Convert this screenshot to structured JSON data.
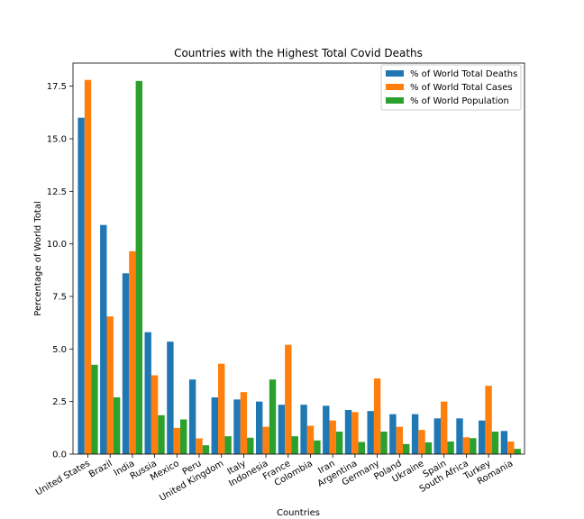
{
  "chart_data": {
    "type": "bar",
    "title": "Countries with the Highest Total Covid Deaths",
    "xlabel": "Countries",
    "ylabel": "Percentage of World Total",
    "ylim": [
      0,
      18.6
    ],
    "yticks": [
      "0.0",
      "2.5",
      "5.0",
      "7.5",
      "10.0",
      "12.5",
      "15.0",
      "17.5"
    ],
    "grid": false,
    "legend_position": "top-right",
    "categories": [
      "United States",
      "Brazil",
      "India",
      "Russia",
      "Mexico",
      "Peru",
      "United Kingdom",
      "Italy",
      "Indonesia",
      "France",
      "Colombia",
      "Iran",
      "Argentina",
      "Germany",
      "Poland",
      "Ukraine",
      "Spain",
      "South Africa",
      "Turkey",
      "Romania"
    ],
    "series": [
      {
        "name": "% of World Total Deaths",
        "color": "#1f77b4",
        "values": [
          16.0,
          10.9,
          8.6,
          5.8,
          5.35,
          3.55,
          2.7,
          2.6,
          2.5,
          2.35,
          2.35,
          2.3,
          2.1,
          2.05,
          1.9,
          1.9,
          1.7,
          1.7,
          1.6,
          1.1
        ]
      },
      {
        "name": "% of World Total Cases",
        "color": "#ff7f0e",
        "values": [
          17.8,
          6.55,
          9.65,
          3.75,
          1.25,
          0.75,
          4.3,
          2.95,
          1.3,
          5.2,
          1.35,
          1.6,
          2.0,
          3.6,
          1.3,
          1.15,
          2.5,
          0.8,
          3.25,
          0.6
        ]
      },
      {
        "name": "% of World Population",
        "color": "#2ca02c",
        "values": [
          4.25,
          2.7,
          17.75,
          1.85,
          1.65,
          0.42,
          0.85,
          0.78,
          3.55,
          0.85,
          0.65,
          1.07,
          0.58,
          1.07,
          0.48,
          0.56,
          0.6,
          0.76,
          1.07,
          0.25
        ]
      }
    ]
  }
}
